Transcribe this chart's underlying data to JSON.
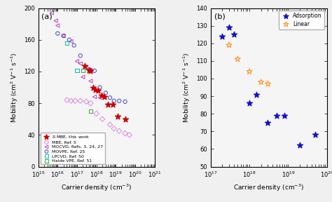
{
  "panel_a": {
    "title": "(a)",
    "xlabel": "Carrier density (cm⁻³)",
    "ylabel": "Mobility (cm² V⁻¹ s⁻¹)",
    "ylim": [
      0,
      200
    ],
    "xlim_log": [
      1000000000000000.0,
      1e+21
    ],
    "smbe": {
      "label_italic": "S",
      "label_rest": "-MBE, this work",
      "color": "#cc0000",
      "marker": "*",
      "x": [
        2.5e+17,
        4e+17,
        5e+17,
        7e+17,
        9e+17,
        1.2e+18,
        1.8e+18,
        2.5e+18,
        4e+18,
        7e+18,
        1.2e+19,
        3e+19
      ],
      "y": [
        127,
        122,
        121,
        100,
        97,
        96,
        90,
        88,
        78,
        78,
        63,
        60
      ]
    },
    "mbe": {
      "label": "MBE, Ref. 5",
      "color": "#dd88dd",
      "marker": "D",
      "x": [
        3e+16,
        5e+16,
        8e+16,
        1.5e+17,
        3e+17,
        5e+17,
        1e+18,
        2e+18,
        5e+18,
        8e+18,
        1.5e+19,
        3e+19,
        5e+19
      ],
      "y": [
        84,
        83,
        83,
        83,
        82,
        80,
        67,
        60,
        53,
        48,
        45,
        42,
        40
      ]
    },
    "mocvd": {
      "label": "MOCVD, Refs. 3, 24, 27",
      "color": "#bb44bb",
      "marker": "<",
      "x": [
        5000000000000000.0,
        8000000000000000.0,
        1e+16,
        2e+16,
        5e+16,
        1e+17,
        1.5e+17,
        2e+17,
        5e+17,
        8e+17,
        1.5e+18
      ],
      "y": [
        194,
        184,
        178,
        165,
        158,
        133,
        130,
        113,
        108,
        88,
        87
      ]
    },
    "movpe": {
      "label": "MOVPE, Ref. 25",
      "color": "#4444cc",
      "marker": "o",
      "x": [
        1e+16,
        2e+16,
        4e+16,
        7e+16,
        1.5e+17,
        3e+17,
        5e+17,
        8e+17,
        1.5e+18,
        3e+18,
        5e+18,
        8e+18,
        1.5e+19,
        3e+19
      ],
      "y": [
        168,
        165,
        160,
        153,
        140,
        125,
        122,
        121,
        100,
        93,
        87,
        83,
        83,
        82
      ]
    },
    "lpcvd": {
      "label": "LPCVD, Ref. 50",
      "color": "#00bbbb",
      "marker": "s",
      "x": [
        3e+16,
        1e+17
      ],
      "y": [
        156,
        121
      ]
    },
    "haide": {
      "label": "Haide VPE, Ref. 51",
      "color": "#33aa33",
      "marker": "s",
      "x": [
        2e+17,
        5e+17
      ],
      "y": [
        121,
        70
      ]
    }
  },
  "panel_b": {
    "title": "(b)",
    "xlabel": "Carrier density (cm⁻³)",
    "ylabel": "Mobility (cm² V⁻¹ s⁻¹)",
    "ylim": [
      50,
      140
    ],
    "xlim_log": [
      1e+17,
      1e+20
    ],
    "adsorption": {
      "label": "Adsorption",
      "color": "#1111cc",
      "marker": "*",
      "x": [
        2e+17,
        3e+17,
        4e+17,
        1e+18,
        1.5e+18,
        3e+18,
        5e+18,
        8e+18,
        2e+19,
        5e+19
      ],
      "y": [
        124,
        129,
        125,
        86,
        91,
        75,
        79,
        79,
        62,
        68
      ]
    },
    "linear": {
      "label": "Linear",
      "color": "#ff9933",
      "marker": "*",
      "x": [
        3e+17,
        5e+17,
        1e+18,
        2e+18,
        3e+18
      ],
      "y": [
        119,
        111,
        104,
        98,
        97
      ]
    }
  }
}
